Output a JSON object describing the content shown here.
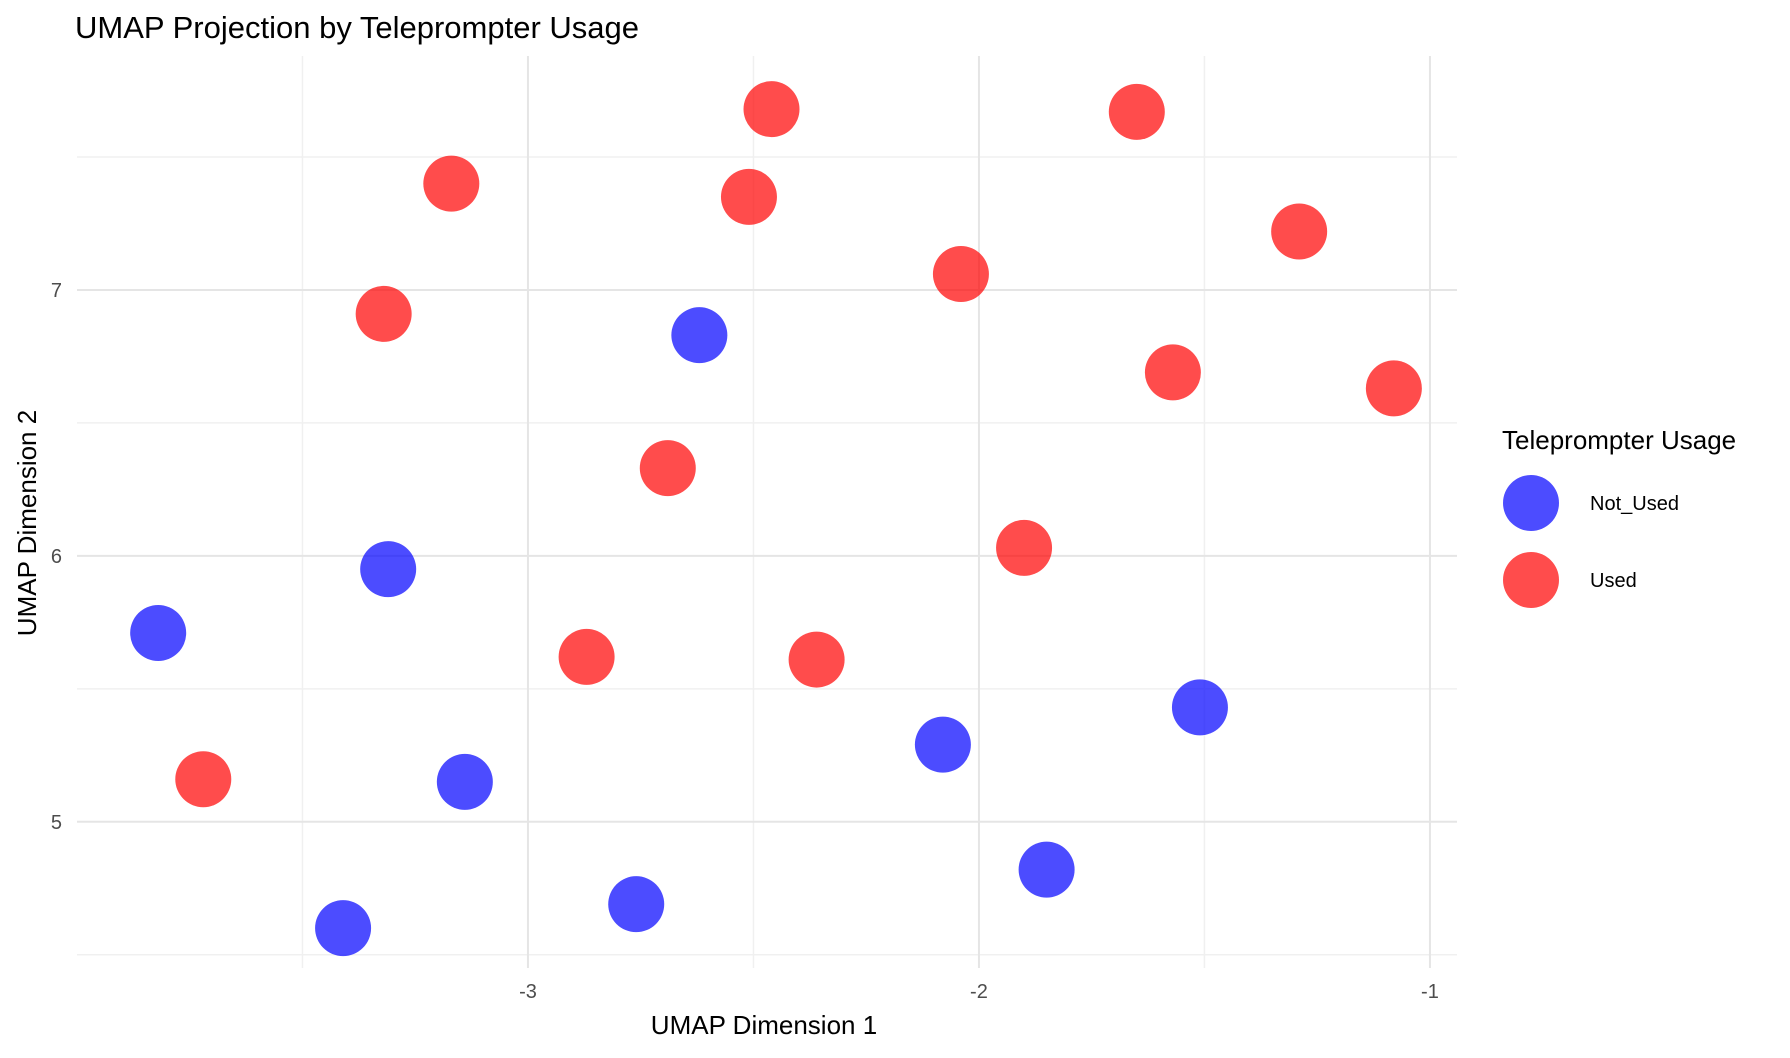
{
  "chart_data": {
    "type": "scatter",
    "title": "UMAP Projection by Teleprompter Usage",
    "xlabel": "UMAP Dimension 1",
    "ylabel": "UMAP Dimension 2",
    "xlim": [
      -4.0,
      -0.94
    ],
    "ylim": [
      4.45,
      7.88
    ],
    "x_ticks": [
      -3,
      -2,
      -1
    ],
    "x_tick_labels": [
      "-3",
      "-2",
      "-1"
    ],
    "y_ticks": [
      5,
      6,
      7
    ],
    "y_tick_labels": [
      "5",
      "6",
      "7"
    ],
    "grid": true,
    "legend": {
      "title": "Teleprompter Usage",
      "position": "right"
    },
    "series": [
      {
        "name": "Not_Used",
        "color": "#0000FF",
        "opacity": 0.7,
        "points": [
          {
            "x": -3.82,
            "y": 5.71
          },
          {
            "x": -3.31,
            "y": 5.95
          },
          {
            "x": -2.62,
            "y": 6.83
          },
          {
            "x": -3.14,
            "y": 5.15
          },
          {
            "x": -3.41,
            "y": 4.6
          },
          {
            "x": -2.76,
            "y": 4.69
          },
          {
            "x": -2.08,
            "y": 5.29
          },
          {
            "x": -1.85,
            "y": 4.82
          },
          {
            "x": -1.51,
            "y": 5.43
          }
        ]
      },
      {
        "name": "Used",
        "color": "#FF0000",
        "opacity": 0.7,
        "points": [
          {
            "x": -3.72,
            "y": 5.16
          },
          {
            "x": -3.32,
            "y": 6.91
          },
          {
            "x": -3.17,
            "y": 7.4
          },
          {
            "x": -2.87,
            "y": 5.62
          },
          {
            "x": -2.69,
            "y": 6.33
          },
          {
            "x": -2.51,
            "y": 7.35
          },
          {
            "x": -2.46,
            "y": 7.68
          },
          {
            "x": -2.36,
            "y": 5.61
          },
          {
            "x": -2.04,
            "y": 7.06
          },
          {
            "x": -1.9,
            "y": 6.03
          },
          {
            "x": -1.65,
            "y": 7.67
          },
          {
            "x": -1.57,
            "y": 6.69
          },
          {
            "x": -1.29,
            "y": 7.22
          },
          {
            "x": -1.08,
            "y": 6.63
          }
        ]
      }
    ]
  }
}
